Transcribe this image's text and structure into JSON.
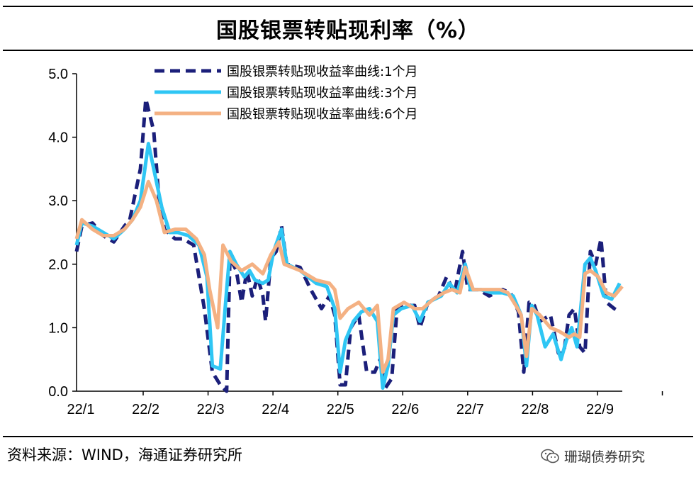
{
  "header": {
    "title": "国股银票转贴现利率（%）"
  },
  "footer": {
    "source": "资料来源：WIND，海通证券研究所",
    "watermark": "珊瑚债券研究",
    "watermark_icon": "wechat-icon"
  },
  "chart_data": {
    "type": "line",
    "title": "国股银票转贴现利率（%）",
    "xlabel": "",
    "ylabel": "",
    "ylim": [
      0,
      5
    ],
    "yticks": [
      "0.0",
      "1.0",
      "2.0",
      "3.0",
      "4.0",
      "5.0"
    ],
    "xticks": [
      "22/1",
      "22/2",
      "22/3",
      "22/4",
      "22/5",
      "22/6",
      "22/7",
      "22/8",
      "22/9"
    ],
    "grid": false,
    "legend": "top-right",
    "series": [
      {
        "name": "国股银票转贴现收益率曲线:1个月",
        "color": "#1b1f7a",
        "style": "dashed",
        "points": [
          [
            0,
            2.2
          ],
          [
            0.1,
            2.6
          ],
          [
            0.3,
            2.65
          ],
          [
            0.5,
            2.45
          ],
          [
            0.7,
            2.35
          ],
          [
            0.9,
            2.6
          ],
          [
            1.0,
            2.7
          ],
          [
            1.2,
            3.5
          ],
          [
            1.3,
            4.6
          ],
          [
            1.45,
            4.1
          ],
          [
            1.55,
            3.0
          ],
          [
            1.65,
            2.55
          ],
          [
            1.85,
            2.4
          ],
          [
            2.0,
            2.4
          ],
          [
            2.2,
            2.3
          ],
          [
            2.4,
            1.3
          ],
          [
            2.55,
            0.3
          ],
          [
            2.7,
            0.1
          ],
          [
            2.82,
            0.0
          ],
          [
            2.88,
            2.1
          ],
          [
            3.0,
            1.9
          ],
          [
            3.1,
            1.4
          ],
          [
            3.2,
            1.9
          ],
          [
            3.3,
            1.5
          ],
          [
            3.4,
            1.8
          ],
          [
            3.5,
            1.5
          ],
          [
            3.55,
            1.1
          ],
          [
            3.65,
            2.1
          ],
          [
            3.75,
            2.2
          ],
          [
            3.85,
            2.6
          ],
          [
            3.95,
            2.0
          ],
          [
            4.2,
            1.95
          ],
          [
            4.4,
            1.6
          ],
          [
            4.6,
            1.3
          ],
          [
            4.75,
            1.5
          ],
          [
            4.85,
            1.2
          ],
          [
            4.95,
            0.1
          ],
          [
            5.05,
            0.1
          ],
          [
            5.15,
            1.0
          ],
          [
            5.3,
            1.2
          ],
          [
            5.45,
            0.3
          ],
          [
            5.6,
            0.3
          ],
          [
            5.7,
            0.5
          ],
          [
            5.8,
            0.05
          ],
          [
            5.92,
            0.2
          ],
          [
            6.02,
            1.3
          ],
          [
            6.2,
            1.35
          ],
          [
            6.35,
            1.35
          ],
          [
            6.45,
            1.0
          ],
          [
            6.6,
            1.4
          ],
          [
            6.8,
            1.5
          ],
          [
            6.95,
            1.8
          ],
          [
            7.1,
            1.55
          ],
          [
            7.25,
            2.2
          ],
          [
            7.35,
            1.6
          ],
          [
            7.55,
            1.6
          ],
          [
            7.75,
            1.5
          ],
          [
            8.0,
            1.6
          ],
          [
            8.15,
            1.55
          ],
          [
            8.3,
            1.25
          ],
          [
            8.4,
            0.3
          ],
          [
            8.5,
            1.4
          ],
          [
            8.6,
            1.35
          ],
          [
            8.7,
            1.1
          ],
          [
            8.9,
            1.2
          ],
          [
            9.05,
            0.6
          ],
          [
            9.15,
            0.6
          ],
          [
            9.25,
            1.2
          ],
          [
            9.35,
            1.3
          ],
          [
            9.45,
            0.7
          ],
          [
            9.55,
            0.6
          ],
          [
            9.65,
            2.2
          ],
          [
            9.75,
            2.0
          ],
          [
            9.85,
            2.4
          ],
          [
            9.95,
            1.4
          ],
          [
            10.1,
            1.3
          ],
          [
            10.2,
            1.25
          ]
        ]
      },
      {
        "name": "国股银票转贴现收益率曲线:3个月",
        "color": "#2fc6f4",
        "style": "solid",
        "points": [
          [
            0,
            2.3
          ],
          [
            0.1,
            2.65
          ],
          [
            0.3,
            2.6
          ],
          [
            0.5,
            2.5
          ],
          [
            0.7,
            2.4
          ],
          [
            0.9,
            2.55
          ],
          [
            1.05,
            2.7
          ],
          [
            1.2,
            3.0
          ],
          [
            1.35,
            3.9
          ],
          [
            1.5,
            3.3
          ],
          [
            1.6,
            2.9
          ],
          [
            1.75,
            2.5
          ],
          [
            1.9,
            2.5
          ],
          [
            2.1,
            2.45
          ],
          [
            2.3,
            2.3
          ],
          [
            2.45,
            1.8
          ],
          [
            2.55,
            0.4
          ],
          [
            2.7,
            0.35
          ],
          [
            2.82,
            1.6
          ],
          [
            2.88,
            2.2
          ],
          [
            3.0,
            2.0
          ],
          [
            3.15,
            1.8
          ],
          [
            3.25,
            1.9
          ],
          [
            3.35,
            1.75
          ],
          [
            3.5,
            1.7
          ],
          [
            3.6,
            1.75
          ],
          [
            3.7,
            2.2
          ],
          [
            3.85,
            2.55
          ],
          [
            3.95,
            2.0
          ],
          [
            4.2,
            1.9
          ],
          [
            4.5,
            1.7
          ],
          [
            4.7,
            1.65
          ],
          [
            4.85,
            1.3
          ],
          [
            4.95,
            0.3
          ],
          [
            5.05,
            0.8
          ],
          [
            5.2,
            1.1
          ],
          [
            5.35,
            1.25
          ],
          [
            5.5,
            1.3
          ],
          [
            5.65,
            1.1
          ],
          [
            5.75,
            0.05
          ],
          [
            5.85,
            0.4
          ],
          [
            5.95,
            1.2
          ],
          [
            6.1,
            1.3
          ],
          [
            6.3,
            1.35
          ],
          [
            6.45,
            1.1
          ],
          [
            6.6,
            1.4
          ],
          [
            6.85,
            1.5
          ],
          [
            7.0,
            1.7
          ],
          [
            7.15,
            1.55
          ],
          [
            7.3,
            2.0
          ],
          [
            7.4,
            1.6
          ],
          [
            7.6,
            1.6
          ],
          [
            7.8,
            1.55
          ],
          [
            8.0,
            1.55
          ],
          [
            8.2,
            1.5
          ],
          [
            8.35,
            1.2
          ],
          [
            8.45,
            0.4
          ],
          [
            8.55,
            1.35
          ],
          [
            8.65,
            1.2
          ],
          [
            8.8,
            0.7
          ],
          [
            8.95,
            0.9
          ],
          [
            9.1,
            0.5
          ],
          [
            9.2,
            0.8
          ],
          [
            9.3,
            1.0
          ],
          [
            9.4,
            0.7
          ],
          [
            9.55,
            2.0
          ],
          [
            9.65,
            2.1
          ],
          [
            9.75,
            1.9
          ],
          [
            9.9,
            1.5
          ],
          [
            10.05,
            1.45
          ],
          [
            10.2,
            1.7
          ]
        ]
      },
      {
        "name": "国股银票转贴现收益率曲线:6个月",
        "color": "#f4b183",
        "style": "solid",
        "points": [
          [
            0,
            2.4
          ],
          [
            0.1,
            2.7
          ],
          [
            0.3,
            2.55
          ],
          [
            0.5,
            2.45
          ],
          [
            0.7,
            2.45
          ],
          [
            0.9,
            2.55
          ],
          [
            1.05,
            2.7
          ],
          [
            1.2,
            2.9
          ],
          [
            1.35,
            3.3
          ],
          [
            1.5,
            3.0
          ],
          [
            1.65,
            2.5
          ],
          [
            1.85,
            2.55
          ],
          [
            2.05,
            2.55
          ],
          [
            2.25,
            2.4
          ],
          [
            2.4,
            2.15
          ],
          [
            2.5,
            1.6
          ],
          [
            2.65,
            1.0
          ],
          [
            2.75,
            2.3
          ],
          [
            2.9,
            2.05
          ],
          [
            3.1,
            1.9
          ],
          [
            3.3,
            2.0
          ],
          [
            3.5,
            1.85
          ],
          [
            3.65,
            2.15
          ],
          [
            3.8,
            2.35
          ],
          [
            3.9,
            2.0
          ],
          [
            4.2,
            1.9
          ],
          [
            4.5,
            1.75
          ],
          [
            4.75,
            1.7
          ],
          [
            4.85,
            1.6
          ],
          [
            4.95,
            1.15
          ],
          [
            5.1,
            1.3
          ],
          [
            5.3,
            1.4
          ],
          [
            5.5,
            1.2
          ],
          [
            5.65,
            1.35
          ],
          [
            5.75,
            0.3
          ],
          [
            5.85,
            0.5
          ],
          [
            5.95,
            1.3
          ],
          [
            6.15,
            1.4
          ],
          [
            6.35,
            1.3
          ],
          [
            6.5,
            1.3
          ],
          [
            6.7,
            1.45
          ],
          [
            6.9,
            1.55
          ],
          [
            7.05,
            1.6
          ],
          [
            7.2,
            1.55
          ],
          [
            7.3,
            1.95
          ],
          [
            7.45,
            1.6
          ],
          [
            7.7,
            1.6
          ],
          [
            7.95,
            1.6
          ],
          [
            8.1,
            1.55
          ],
          [
            8.25,
            1.35
          ],
          [
            8.35,
            1.2
          ],
          [
            8.45,
            0.55
          ],
          [
            8.55,
            1.3
          ],
          [
            8.7,
            1.2
          ],
          [
            8.9,
            1.0
          ],
          [
            9.05,
            0.95
          ],
          [
            9.25,
            0.85
          ],
          [
            9.35,
            0.9
          ],
          [
            9.45,
            0.85
          ],
          [
            9.55,
            1.85
          ],
          [
            9.65,
            1.9
          ],
          [
            9.8,
            1.8
          ],
          [
            9.95,
            1.55
          ],
          [
            10.1,
            1.5
          ],
          [
            10.25,
            1.65
          ]
        ]
      }
    ]
  }
}
